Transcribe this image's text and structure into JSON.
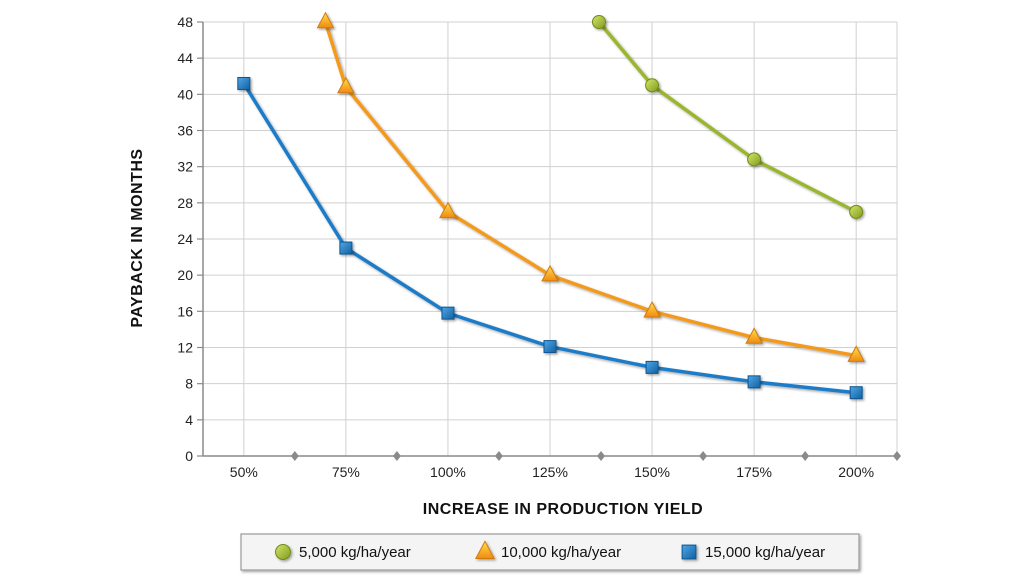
{
  "chart_data": {
    "type": "line",
    "title": "",
    "xlabel": "INCREASE IN PRODUCTION YIELD",
    "ylabel": "PAYBACK IN MONTHS",
    "categories": [
      "50%",
      "75%",
      "100%",
      "125%",
      "150%",
      "175%",
      "200%"
    ],
    "category_values": [
      50,
      75,
      100,
      125,
      150,
      175,
      200
    ],
    "xlim": [
      40,
      210
    ],
    "ylim": [
      0,
      48
    ],
    "yticks": [
      0,
      4,
      8,
      12,
      16,
      20,
      24,
      28,
      32,
      36,
      40,
      44,
      48
    ],
    "grid": true,
    "legend_position": "bottom",
    "series": [
      {
        "name": "5,000 kg/ha/year",
        "marker": "circle",
        "color": "#9ab52e",
        "points": [
          [
            137,
            48
          ],
          [
            150,
            41
          ],
          [
            175,
            32.8
          ],
          [
            200,
            27
          ]
        ]
      },
      {
        "name": "10,000 kg/ha/year",
        "marker": "triangle",
        "color": "#f39a1e",
        "points": [
          [
            70,
            48
          ],
          [
            75,
            40.8
          ],
          [
            100,
            27
          ],
          [
            125,
            20
          ],
          [
            150,
            16
          ],
          [
            175,
            13.1
          ],
          [
            200,
            11.1
          ]
        ]
      },
      {
        "name": "15,000 kg/ha/year",
        "marker": "square",
        "color": "#1e7cc8",
        "points": [
          [
            50,
            41.2
          ],
          [
            75,
            23
          ],
          [
            100,
            15.8
          ],
          [
            125,
            12.1
          ],
          [
            150,
            9.8
          ],
          [
            175,
            8.2
          ],
          [
            200,
            7
          ]
        ]
      }
    ]
  }
}
